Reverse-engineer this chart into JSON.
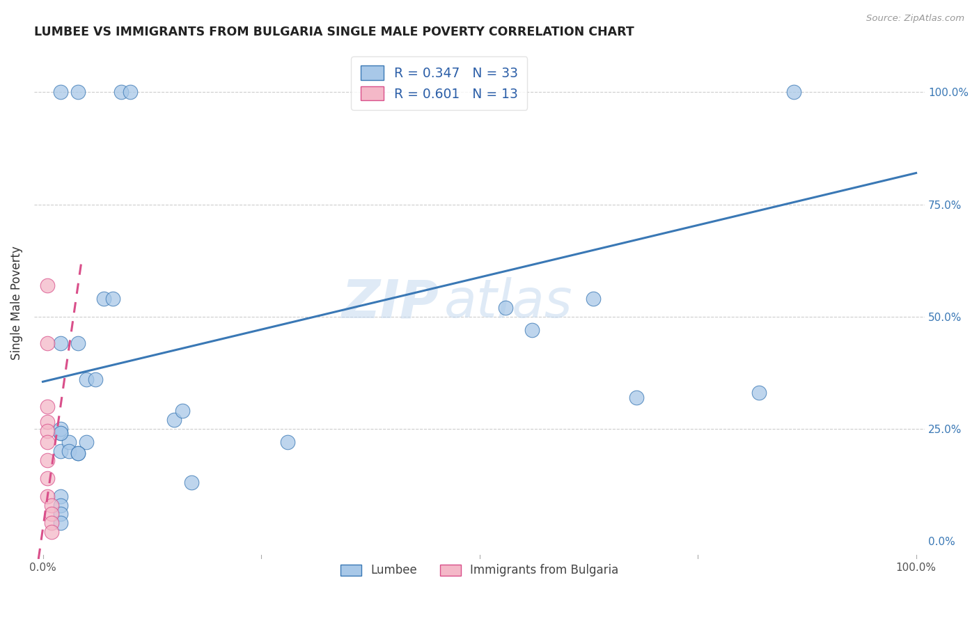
{
  "title": "LUMBEE VS IMMIGRANTS FROM BULGARIA SINGLE MALE POVERTY CORRELATION CHART",
  "source": "Source: ZipAtlas.com",
  "ylabel": "Single Male Poverty",
  "legend_label1": "R = 0.347   N = 33",
  "legend_label2": "R = 0.601   N = 13",
  "legend_bottom1": "Lumbee",
  "legend_bottom2": "Immigrants from Bulgaria",
  "blue_color": "#a8c8e8",
  "pink_color": "#f4b8c8",
  "blue_line_color": "#3a78b5",
  "pink_line_color": "#d94f8a",
  "watermark_zip": "ZIP",
  "watermark_atlas": "atlas",
  "lumbee_x": [
    0.02,
    0.04,
    0.09,
    0.1,
    0.02,
    0.04,
    0.05,
    0.06,
    0.02,
    0.02,
    0.03,
    0.05,
    0.07,
    0.08,
    0.03,
    0.04,
    0.04,
    0.15,
    0.16,
    0.28,
    0.53,
    0.56,
    0.63,
    0.68,
    0.82,
    0.86,
    0.02,
    0.02,
    0.02,
    0.02,
    0.02,
    0.17,
    0.02
  ],
  "lumbee_y": [
    1.0,
    1.0,
    1.0,
    1.0,
    0.44,
    0.44,
    0.36,
    0.36,
    0.24,
    0.2,
    0.22,
    0.22,
    0.54,
    0.54,
    0.2,
    0.195,
    0.195,
    0.27,
    0.29,
    0.22,
    0.52,
    0.47,
    0.54,
    0.32,
    0.33,
    1.0,
    0.25,
    0.24,
    0.1,
    0.08,
    0.06,
    0.13,
    0.04
  ],
  "bulgaria_x": [
    0.005,
    0.005,
    0.005,
    0.005,
    0.005,
    0.005,
    0.005,
    0.005,
    0.005,
    0.01,
    0.01,
    0.01,
    0.01
  ],
  "bulgaria_y": [
    0.57,
    0.44,
    0.3,
    0.265,
    0.245,
    0.22,
    0.18,
    0.14,
    0.1,
    0.08,
    0.06,
    0.04,
    0.02
  ],
  "blue_line_x0": 0.0,
  "blue_line_y0": 0.355,
  "blue_line_x1": 1.0,
  "blue_line_y1": 0.82,
  "pink_line_x0": -0.005,
  "pink_line_y0": -0.04,
  "pink_line_x1": 0.044,
  "pink_line_y1": 0.62,
  "xlim_min": -0.01,
  "xlim_max": 1.01,
  "ylim_min": -0.04,
  "ylim_max": 1.1
}
